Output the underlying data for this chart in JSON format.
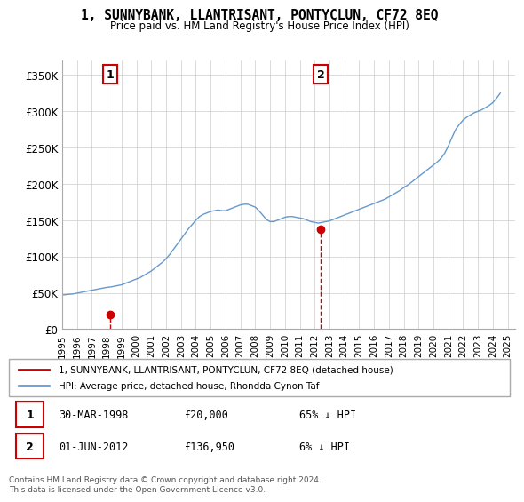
{
  "title": "1, SUNNYBANK, LLANTRISANT, PONTYCLUN, CF72 8EQ",
  "subtitle": "Price paid vs. HM Land Registry's House Price Index (HPI)",
  "ylabel": "",
  "xlabel": "",
  "background_color": "#ffffff",
  "plot_bg_color": "#ffffff",
  "grid_color": "#cccccc",
  "hpi_color": "#6699cc",
  "price_color": "#cc0000",
  "ylim": [
    0,
    370000
  ],
  "yticks": [
    0,
    50000,
    100000,
    150000,
    200000,
    250000,
    300000,
    350000
  ],
  "ytick_labels": [
    "£0",
    "£50K",
    "£100K",
    "£150K",
    "£200K",
    "£250K",
    "£300K",
    "£350K"
  ],
  "xlim_start": 1995.0,
  "xlim_end": 2025.5,
  "sale1_x": 1998.25,
  "sale1_y": 20000,
  "sale1_label": "1",
  "sale2_x": 2012.42,
  "sale2_y": 136950,
  "sale2_label": "2",
  "legend_line1": "1, SUNNYBANK, LLANTRISANT, PONTYCLUN, CF72 8EQ (detached house)",
  "legend_line2": "HPI: Average price, detached house, Rhondda Cynon Taf",
  "table_row1": [
    "1",
    "30-MAR-1998",
    "£20,000",
    "65% ↓ HPI"
  ],
  "table_row2": [
    "2",
    "01-JUN-2012",
    "£136,950",
    "6% ↓ HPI"
  ],
  "footnote": "Contains HM Land Registry data © Crown copyright and database right 2024.\nThis data is licensed under the Open Government Licence v3.0.",
  "hpi_years": [
    1995,
    1995.25,
    1995.5,
    1995.75,
    1996,
    1996.25,
    1996.5,
    1996.75,
    1997,
    1997.25,
    1997.5,
    1997.75,
    1998,
    1998.25,
    1998.5,
    1998.75,
    1999,
    1999.25,
    1999.5,
    1999.75,
    2000,
    2000.25,
    2000.5,
    2000.75,
    2001,
    2001.25,
    2001.5,
    2001.75,
    2002,
    2002.25,
    2002.5,
    2002.75,
    2003,
    2003.25,
    2003.5,
    2003.75,
    2004,
    2004.25,
    2004.5,
    2004.75,
    2005,
    2005.25,
    2005.5,
    2005.75,
    2006,
    2006.25,
    2006.5,
    2006.75,
    2007,
    2007.25,
    2007.5,
    2007.75,
    2008,
    2008.25,
    2008.5,
    2008.75,
    2009,
    2009.25,
    2009.5,
    2009.75,
    2010,
    2010.25,
    2010.5,
    2010.75,
    2011,
    2011.25,
    2011.5,
    2011.75,
    2012,
    2012.25,
    2012.5,
    2012.75,
    2013,
    2013.25,
    2013.5,
    2013.75,
    2014,
    2014.25,
    2014.5,
    2014.75,
    2015,
    2015.25,
    2015.5,
    2015.75,
    2016,
    2016.25,
    2016.5,
    2016.75,
    2017,
    2017.25,
    2017.5,
    2017.75,
    2018,
    2018.25,
    2018.5,
    2018.75,
    2019,
    2019.25,
    2019.5,
    2019.75,
    2020,
    2020.25,
    2020.5,
    2020.75,
    2021,
    2021.25,
    2021.5,
    2021.75,
    2022,
    2022.25,
    2022.5,
    2022.75,
    2023,
    2023.25,
    2023.5,
    2023.75,
    2024,
    2024.25,
    2024.5
  ],
  "hpi_values": [
    47000,
    47500,
    48000,
    48500,
    49500,
    50500,
    51500,
    52500,
    53500,
    54500,
    55500,
    56500,
    57500,
    58000,
    59000,
    60000,
    61000,
    63000,
    65000,
    67000,
    69000,
    71000,
    74000,
    77000,
    80000,
    84000,
    88000,
    92000,
    97000,
    103000,
    110000,
    117000,
    124000,
    131000,
    138000,
    144000,
    150000,
    155000,
    158000,
    160000,
    162000,
    163000,
    164000,
    163000,
    163000,
    165000,
    167000,
    169000,
    171000,
    172000,
    172000,
    170000,
    168000,
    163000,
    157000,
    151000,
    148000,
    148000,
    150000,
    152000,
    154000,
    155000,
    155000,
    154000,
    153000,
    152000,
    150000,
    148000,
    147000,
    146000,
    147000,
    148000,
    149000,
    151000,
    153000,
    155000,
    157000,
    159000,
    161000,
    163000,
    165000,
    167000,
    169000,
    171000,
    173000,
    175000,
    177000,
    179000,
    182000,
    185000,
    188000,
    191000,
    195000,
    198000,
    202000,
    206000,
    210000,
    214000,
    218000,
    222000,
    226000,
    230000,
    235000,
    242000,
    252000,
    264000,
    275000,
    282000,
    288000,
    292000,
    295000,
    298000,
    300000,
    302000,
    305000,
    308000,
    312000,
    318000,
    325000
  ]
}
